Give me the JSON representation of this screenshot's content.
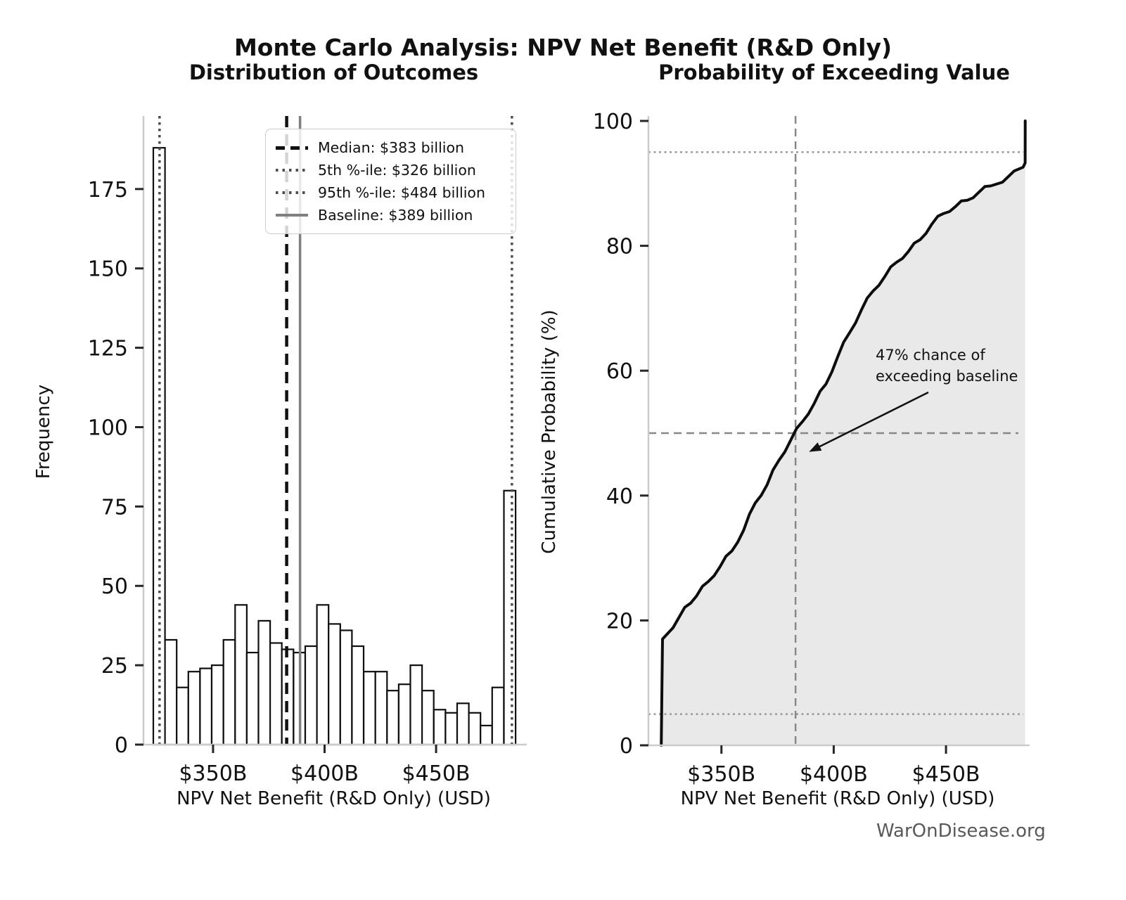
{
  "figure": {
    "title": "Monte Carlo Analysis: NPV Net Benefit (R&D Only)",
    "footer": "WarOnDisease.org"
  },
  "legend": {
    "items": [
      {
        "label": "Median: $383 billion",
        "style": "dashed-black"
      },
      {
        "label": "5th %-ile: $326 billion",
        "style": "dotted-gray"
      },
      {
        "label": "95th %-ile: $484 billion",
        "style": "dotted-gray"
      },
      {
        "label": "Baseline: $389 billion",
        "style": "solid-gray"
      }
    ]
  },
  "chart_data": [
    {
      "type": "bar",
      "subtype": "histogram",
      "title": "Distribution of Outcomes",
      "xlabel": "NPV Net Benefit (R&D Only) (USD)",
      "ylabel": "Frequency",
      "x_unit": "billions of USD",
      "bin_start": 323.2,
      "bin_width": 5.24,
      "counts": [
        188,
        33,
        18,
        23,
        24,
        25,
        33,
        44,
        29,
        39,
        32,
        30,
        29,
        31,
        44,
        38,
        36,
        31,
        23,
        23,
        17,
        19,
        25,
        17,
        11,
        10,
        13,
        10,
        6,
        18,
        80
      ],
      "total_samples": 999,
      "xticks": [
        {
          "value": 350,
          "label": "$350B"
        },
        {
          "value": 400,
          "label": "$400B"
        },
        {
          "value": 450,
          "label": "$450B"
        }
      ],
      "yticks": [
        0,
        25,
        50,
        75,
        100,
        125,
        150,
        175
      ],
      "xlim": [
        318.8,
        489.4
      ],
      "ylim": [
        0,
        198
      ],
      "grid": false,
      "bar_fill": "#ffffff",
      "bar_edge": "#0f0f0f",
      "vlines": [
        {
          "name": "median",
          "value": 383,
          "style": "dashed",
          "color": "#111111",
          "width": 4.5
        },
        {
          "name": "p5",
          "value": 326,
          "style": "dotted",
          "color": "#4d4d4d",
          "width": 3.5
        },
        {
          "name": "p95",
          "value": 484,
          "style": "dotted",
          "color": "#4d4d4d",
          "width": 3.5
        },
        {
          "name": "baseline",
          "value": 389,
          "style": "solid",
          "color": "#808080",
          "width": 3.5
        }
      ],
      "legend_position": "upper right"
    },
    {
      "type": "line",
      "subtype": "empirical-cdf-of-histogram-1",
      "title": "Probability of Exceeding Value",
      "xlabel": "NPV Net Benefit (R&D Only) (USD)",
      "ylabel": "Cumulative Probability (%)",
      "xticks": [
        {
          "value": 350,
          "label": "$350B"
        },
        {
          "value": 400,
          "label": "$400B"
        },
        {
          "value": 450,
          "label": "$450B"
        }
      ],
      "yticks": [
        0,
        20,
        40,
        60,
        80,
        100
      ],
      "xlim": [
        317.5,
        486
      ],
      "ylim": [
        0,
        100
      ],
      "key_points": [
        [
          326,
          5
        ],
        [
          383,
          50
        ],
        [
          389,
          53
        ],
        [
          484,
          95
        ]
      ],
      "line_color": "#0d0d0d",
      "fill_color": "#e9e9e9",
      "hlines": [
        {
          "value": 95,
          "style": "dotted",
          "color": "#999999"
        },
        {
          "value": 50,
          "style": "dashed",
          "color": "#888888"
        },
        {
          "value": 5,
          "style": "dotted",
          "color": "#999999"
        }
      ],
      "vlines": [
        {
          "value": 383,
          "style": "dashed",
          "color": "#888888"
        }
      ],
      "annotation": {
        "lines": [
          "47% chance of",
          "exceeding baseline"
        ],
        "target": {
          "x": 389,
          "y": 47
        }
      }
    }
  ]
}
